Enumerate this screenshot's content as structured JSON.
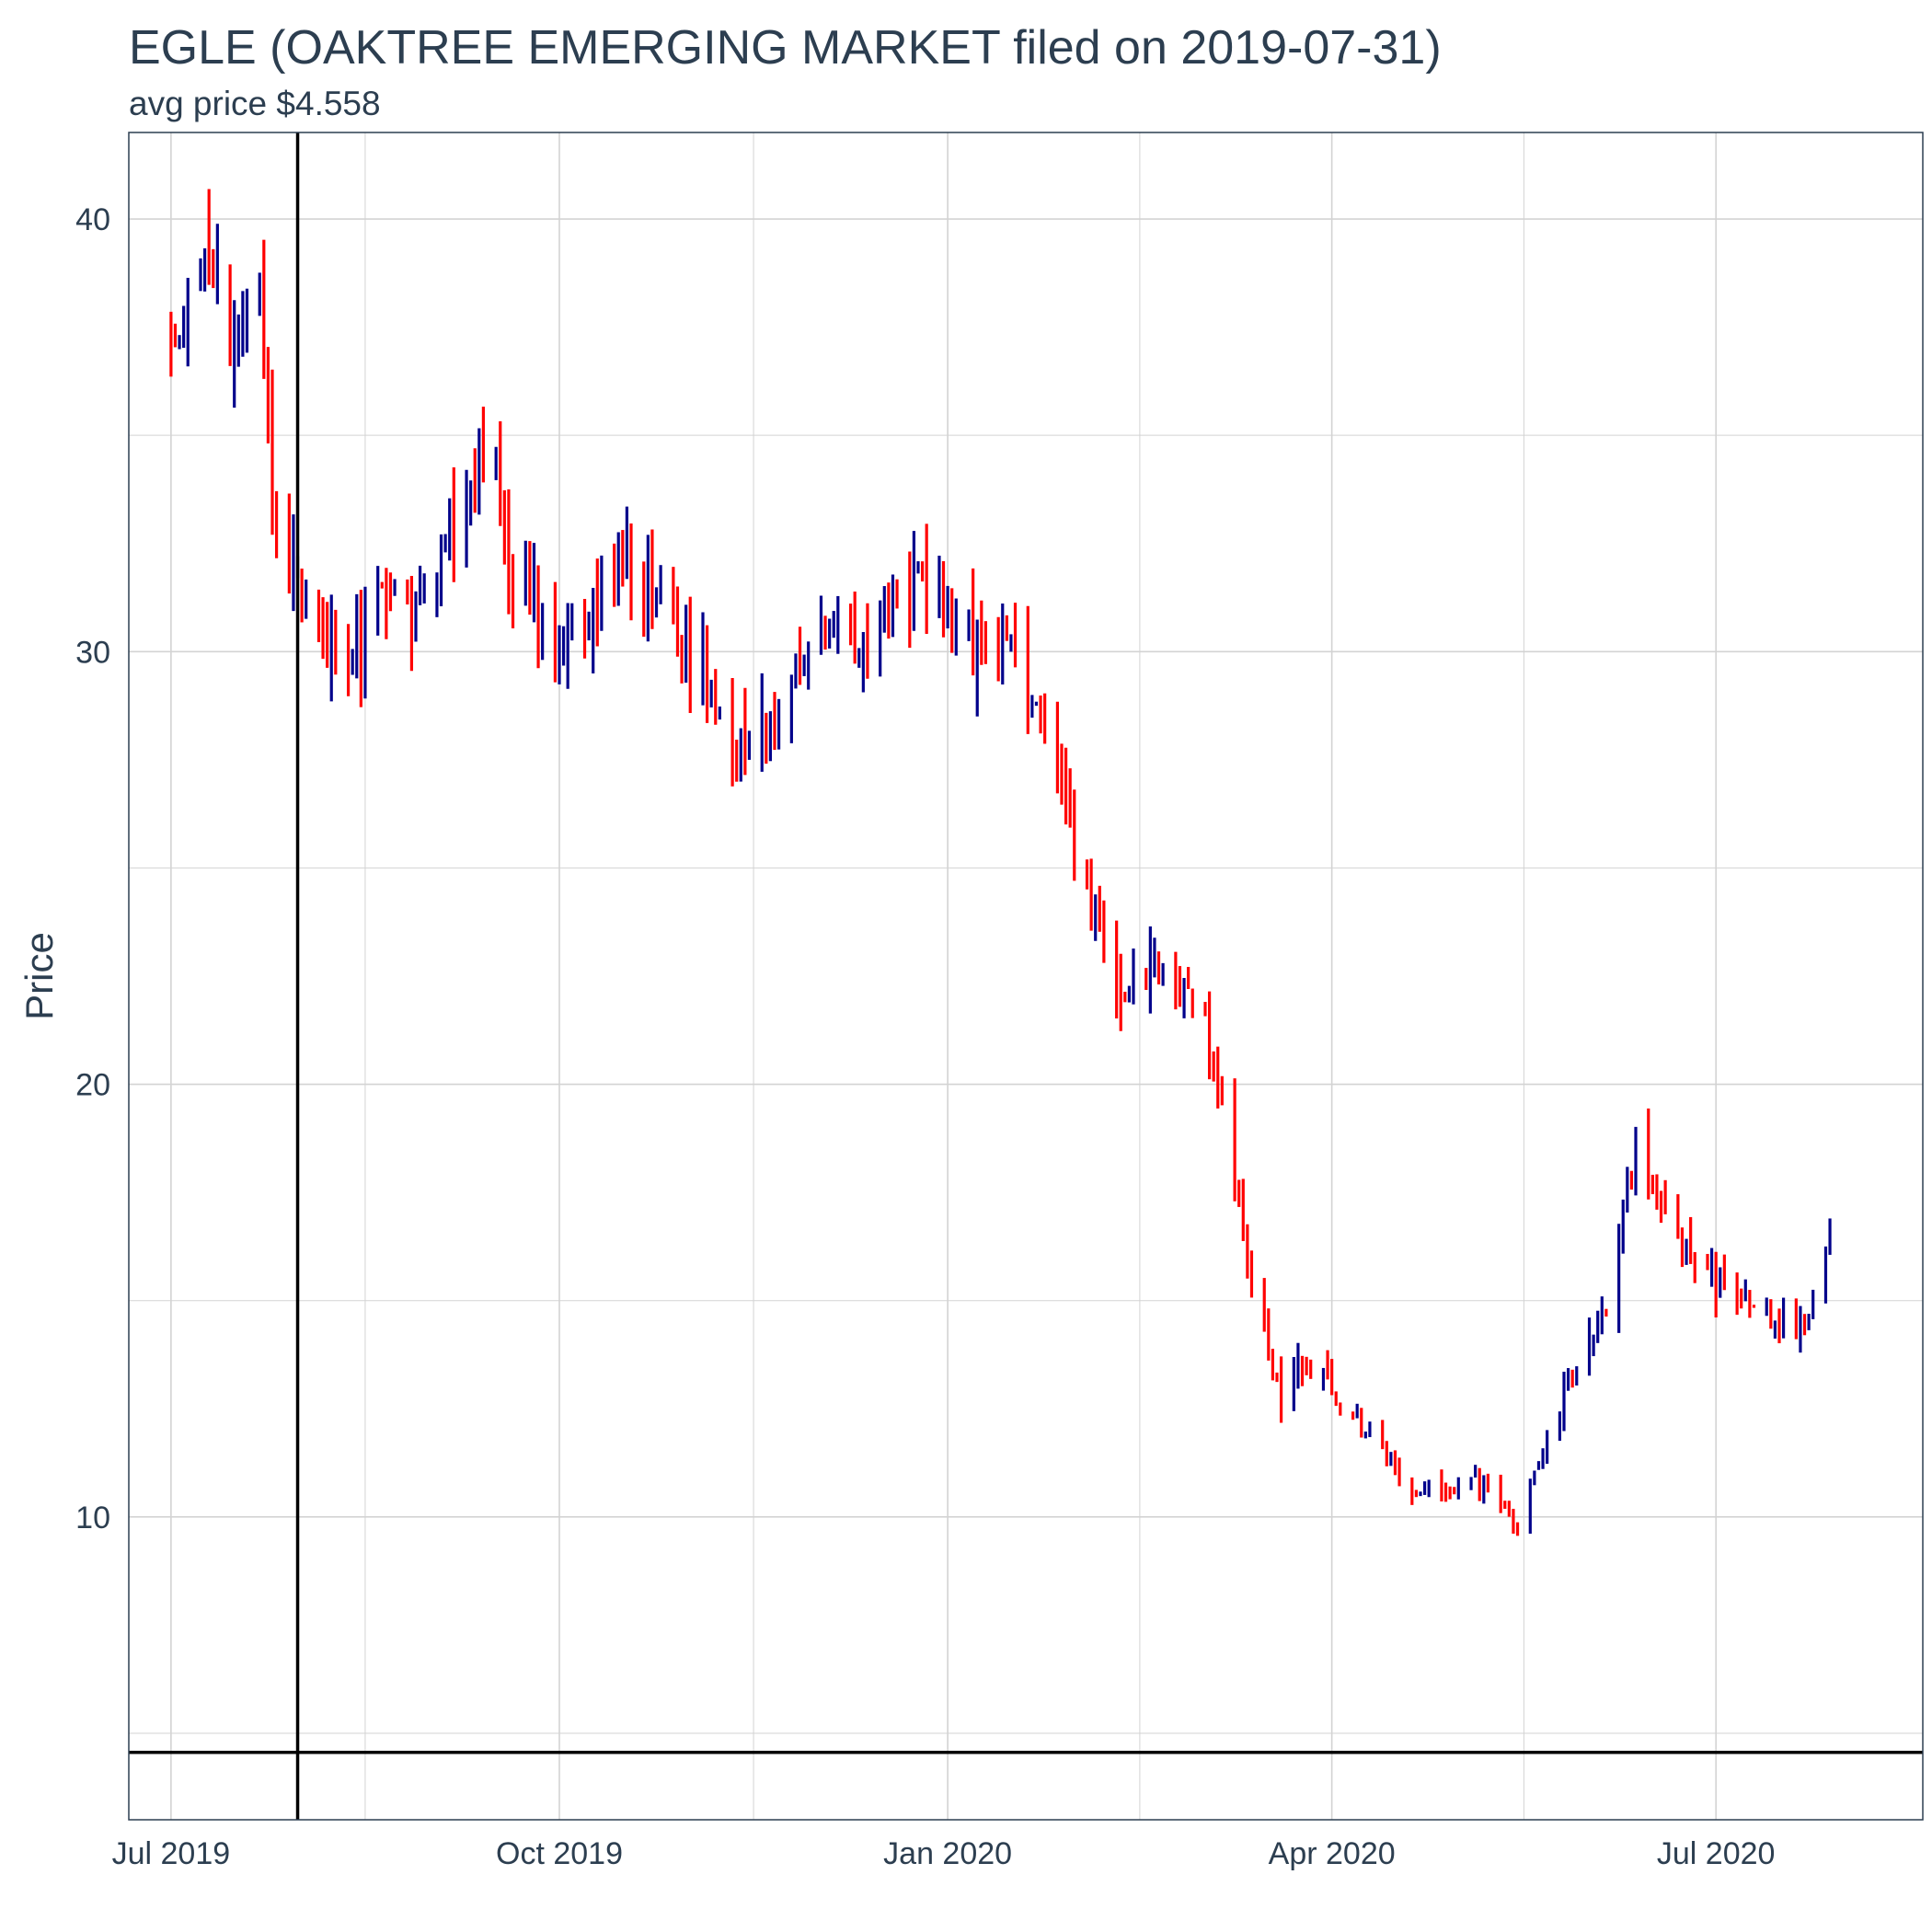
{
  "chart_data": {
    "type": "ohlc",
    "title": "EGLE (OAKTREE EMERGING MARKET filed on 2019-07-31)",
    "subtitle": "avg price $4.558",
    "ylabel": "Price",
    "xlabel": "",
    "ylim": [
      3.0,
      42.0
    ],
    "y_ticks": [
      10,
      20,
      30,
      40
    ],
    "x_range": [
      "2019-06-21",
      "2020-08-19"
    ],
    "x_ticks": [
      {
        "date": "2019-07-01",
        "label": "Jul 2019"
      },
      {
        "date": "2019-10-01",
        "label": "Oct 2019"
      },
      {
        "date": "2020-01-01",
        "label": "Jan 2020"
      },
      {
        "date": "2020-04-01",
        "label": "Apr 2020"
      },
      {
        "date": "2020-07-01",
        "label": "Jul 2020"
      }
    ],
    "grid": true,
    "colors": {
      "up": "#00008b",
      "down": "#ff0000",
      "reference": "#000000",
      "grid": "#d3d3d3",
      "border": "#2c3e50"
    },
    "reference_lines": {
      "vertical_date": "2019-07-31",
      "horizontal_value": 4.558
    },
    "anchors": [
      [
        "2019-07-01",
        37.5
      ],
      [
        "2019-07-08",
        39.6
      ],
      [
        "2019-07-15",
        37.5
      ],
      [
        "2019-07-22",
        38.5
      ],
      [
        "2019-07-25",
        32.5
      ],
      [
        "2019-08-05",
        30.5
      ],
      [
        "2019-08-12",
        29.5
      ],
      [
        "2019-08-20",
        31.2
      ],
      [
        "2019-08-30",
        30.8
      ],
      [
        "2019-09-05",
        32.8
      ],
      [
        "2019-09-15",
        35.0
      ],
      [
        "2019-09-20",
        32.0
      ],
      [
        "2019-10-01",
        30.3
      ],
      [
        "2019-10-15",
        31.6
      ],
      [
        "2019-10-25",
        31.3
      ],
      [
        "2019-11-05",
        29.5
      ],
      [
        "2019-11-12",
        27.5
      ],
      [
        "2019-11-25",
        29.0
      ],
      [
        "2019-12-05",
        31.2
      ],
      [
        "2019-12-12",
        30.1
      ],
      [
        "2019-12-24",
        32.0
      ],
      [
        "2020-01-05",
        30.6
      ],
      [
        "2020-01-15",
        30.1
      ],
      [
        "2020-01-25",
        28.5
      ],
      [
        "2020-02-01",
        25.0
      ],
      [
        "2020-02-10",
        22.0
      ],
      [
        "2020-02-20",
        22.5
      ],
      [
        "2020-03-01",
        22.0
      ],
      [
        "2020-03-10",
        17.0
      ],
      [
        "2020-03-20",
        12.5
      ],
      [
        "2020-03-25",
        13.5
      ],
      [
        "2020-04-05",
        12.5
      ],
      [
        "2020-04-20",
        10.5
      ],
      [
        "2020-05-05",
        10.8
      ],
      [
        "2020-05-15",
        9.8
      ],
      [
        "2020-05-25",
        12.5
      ],
      [
        "2020-06-05",
        15.0
      ],
      [
        "2020-06-12",
        18.5
      ],
      [
        "2020-06-20",
        16.5
      ],
      [
        "2020-06-30",
        15.5
      ],
      [
        "2020-07-10",
        14.8
      ],
      [
        "2020-07-22",
        14.5
      ],
      [
        "2020-07-28",
        16.5
      ]
    ]
  }
}
